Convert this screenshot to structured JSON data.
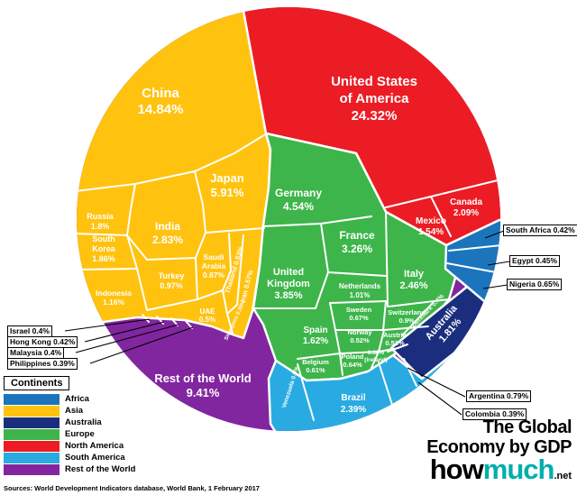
{
  "page": {
    "title_lines": [
      "The Global",
      "Economy by GDP"
    ],
    "logo": {
      "part1": "how",
      "part2": "much",
      "suffix": ".net"
    },
    "source": "Sources: World Development Indicators database, World Bank, 1 February 2017"
  },
  "colors": {
    "africa": "#1C75BC",
    "asia": "#FFC20E",
    "australia": "#1B2E7E",
    "europe": "#3DB54A",
    "north_america": "#EC1C24",
    "south_america": "#29ABE2",
    "rest_of_world": "#8226A0",
    "logo_accent": "#00AFAA"
  },
  "chart_data": {
    "type": "pie",
    "variant": "voronoi-treemap-circle",
    "title": "The Global Economy by GDP",
    "unit": "%",
    "legend": {
      "title": "Continents",
      "position": "bottom-left",
      "entries": [
        {
          "label": "Africa",
          "color": "#1C75BC"
        },
        {
          "label": "Asia",
          "color": "#FFC20E"
        },
        {
          "label": "Australia",
          "color": "#1B2E7E"
        },
        {
          "label": "Europe",
          "color": "#3DB54A"
        },
        {
          "label": "North America",
          "color": "#EC1C24"
        },
        {
          "label": "South America",
          "color": "#29ABE2"
        },
        {
          "label": "Rest of the World",
          "color": "#8226A0"
        }
      ]
    },
    "groups": [
      {
        "continent": "Asia",
        "color": "#FFC20E",
        "countries": [
          {
            "id": "china",
            "name": "China",
            "display": "14.84%",
            "value": 14.84
          },
          {
            "id": "japan",
            "name": "Japan",
            "display": "5.91%",
            "value": 5.91
          },
          {
            "id": "india",
            "name": "India",
            "display": "2.83%",
            "value": 2.83
          },
          {
            "id": "south_korea",
            "name": "South Korea",
            "name_lines": [
              "South",
              "Korea"
            ],
            "display": "1.86%",
            "value": 1.86
          },
          {
            "id": "russia",
            "name": "Russia",
            "display": "1.8%",
            "value": 1.8
          },
          {
            "id": "indonesia",
            "name": "Indonesia",
            "display": "1.16%",
            "value": 1.16
          },
          {
            "id": "turkey",
            "name": "Turkey",
            "display": "0.97%",
            "value": 0.97
          },
          {
            "id": "saudi_arabia",
            "name": "Saudi Arabia",
            "name_lines": [
              "Saudi",
              "Arabia"
            ],
            "display": "0.87%",
            "value": 0.87
          },
          {
            "id": "iran",
            "name": "Iran",
            "display": "0.57%",
            "value": 0.57
          },
          {
            "id": "thailand",
            "name": "Thailand",
            "display": "0.53%",
            "value": 0.53
          },
          {
            "id": "uae",
            "name": "UAE",
            "display": "0.5%",
            "value": 0.5
          },
          {
            "id": "hong_kong",
            "name": "Hong Kong",
            "display": "0.42%",
            "value": 0.42
          },
          {
            "id": "israel",
            "name": "Israel",
            "display": "0.4%",
            "value": 0.4
          },
          {
            "id": "malaysia",
            "name": "Malaysia",
            "display": "0.4%",
            "value": 0.4
          },
          {
            "id": "singapore",
            "name": "Singapore",
            "display": "0.39%",
            "value": 0.39
          },
          {
            "id": "philippines",
            "name": "Philippines",
            "display": "0.39%",
            "value": 0.39
          }
        ]
      },
      {
        "continent": "North America",
        "color": "#EC1C24",
        "countries": [
          {
            "id": "usa",
            "name": "United States of America",
            "name_lines": [
              "United States",
              "of America"
            ],
            "display": "24.32%",
            "value": 24.32
          },
          {
            "id": "canada",
            "name": "Canada",
            "display": "2.09%",
            "value": 2.09
          },
          {
            "id": "mexico",
            "name": "Mexico",
            "display": "1.54%",
            "value": 1.54
          }
        ]
      },
      {
        "continent": "Europe",
        "color": "#3DB54A",
        "countries": [
          {
            "id": "germany",
            "name": "Germany",
            "display": "4.54%",
            "value": 4.54
          },
          {
            "id": "uk",
            "name": "United Kingdom",
            "name_lines": [
              "United",
              "Kingdom"
            ],
            "display": "3.85%",
            "value": 3.85
          },
          {
            "id": "france",
            "name": "France",
            "display": "3.26%",
            "value": 3.26
          },
          {
            "id": "italy",
            "name": "Italy",
            "display": "2.46%",
            "value": 2.46
          },
          {
            "id": "spain",
            "name": "Spain",
            "display": "1.62%",
            "value": 1.62
          },
          {
            "id": "netherlands",
            "name": "Netherlands",
            "display": "1.01%",
            "value": 1.01
          },
          {
            "id": "switzerland",
            "name": "Switzerland",
            "display": "0.9%",
            "value": 0.9
          },
          {
            "id": "sweden",
            "name": "Sweden",
            "display": "0.67%",
            "value": 0.67
          },
          {
            "id": "poland",
            "name": "Poland",
            "display": "0.64%",
            "value": 0.64
          },
          {
            "id": "belgium",
            "name": "Belgium",
            "display": "0.61%",
            "value": 0.61
          },
          {
            "id": "norway",
            "name": "Norway",
            "display": "0.52%",
            "value": 0.52
          },
          {
            "id": "austria",
            "name": "Austria",
            "display": "0.51%",
            "value": 0.51
          },
          {
            "id": "denmark",
            "name": "Denmark",
            "display": "0.4%",
            "value": 0.4
          },
          {
            "id": "ireland",
            "name": "Ireland",
            "name_lines": [
              "(Ireland)"
            ],
            "display": "0.38%",
            "value": 0.38
          }
        ]
      },
      {
        "continent": "South America",
        "color": "#29ABE2",
        "countries": [
          {
            "id": "brazil",
            "name": "Brazil",
            "display": "2.39%",
            "value": 2.39
          },
          {
            "id": "argentina",
            "name": "Argentina",
            "display": "0.79%",
            "value": 0.79
          },
          {
            "id": "venezuela",
            "name": "Venezuela",
            "display": "0.5%",
            "value": 0.5
          },
          {
            "id": "colombia",
            "name": "Colombia",
            "display": "0.39%",
            "value": 0.39
          }
        ]
      },
      {
        "continent": "Africa",
        "color": "#1C75BC",
        "countries": [
          {
            "id": "nigeria",
            "name": "Nigeria",
            "display": "0.65%",
            "value": 0.65
          },
          {
            "id": "egypt",
            "name": "Egypt",
            "display": "0.45%",
            "value": 0.45
          },
          {
            "id": "south_africa",
            "name": "South Africa",
            "display": "0.42%",
            "value": 0.42
          }
        ]
      },
      {
        "continent": "Australia",
        "color": "#1B2E7E",
        "countries": [
          {
            "id": "australia",
            "name": "Australia",
            "display": "1.81%",
            "value": 1.81
          }
        ]
      },
      {
        "continent": "Rest of the World",
        "color": "#8226A0",
        "countries": [
          {
            "id": "rest_of_world",
            "name": "Rest of the World",
            "display": "9.41%",
            "value": 9.41
          }
        ]
      }
    ]
  }
}
